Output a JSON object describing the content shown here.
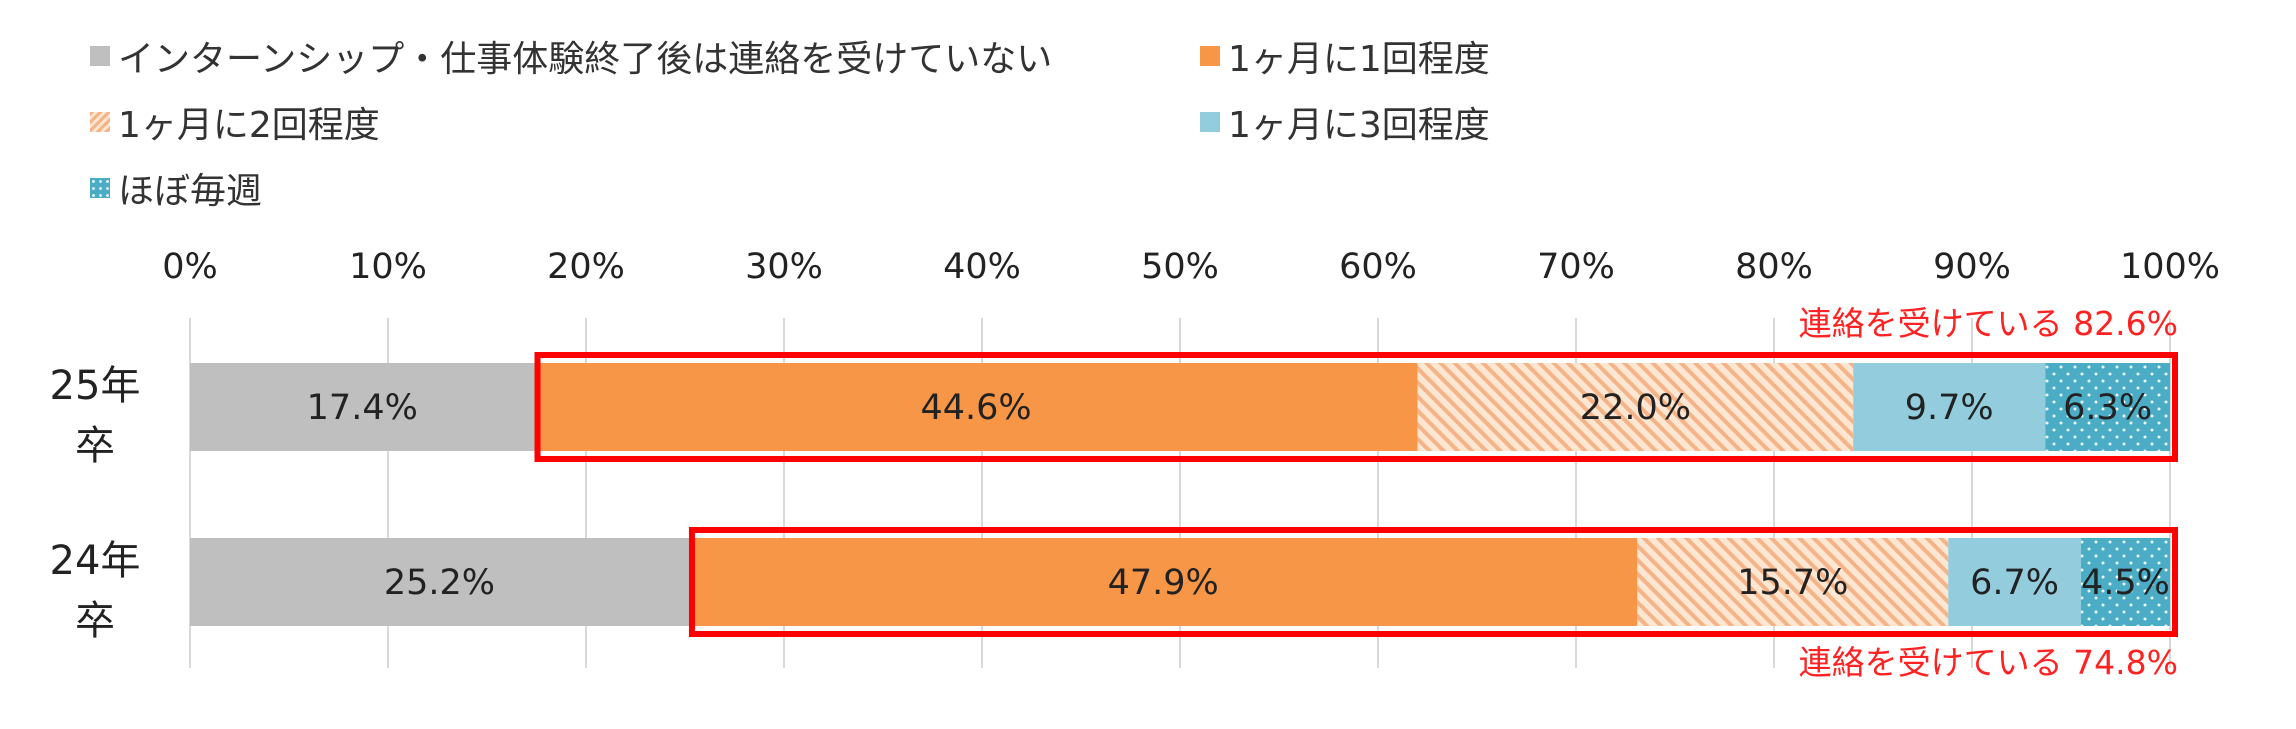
{
  "chart_data": {
    "type": "bar",
    "orientation": "horizontal",
    "stacked": true,
    "percent": true,
    "xlim": [
      0,
      100
    ],
    "x_ticks": [
      "0%",
      "10%",
      "20%",
      "30%",
      "40%",
      "50%",
      "60%",
      "70%",
      "80%",
      "90%",
      "100%"
    ],
    "grid": "vertical",
    "legend_position": "top",
    "categories": [
      {
        "line1": "25年",
        "line2": "卒"
      },
      {
        "line1": "24年",
        "line2": "卒"
      }
    ],
    "series": [
      {
        "name": "インターンシップ・仕事体験終了後は連絡を受けていない",
        "color": "#bfbfbf",
        "pattern": "solid",
        "values": [
          17.4,
          25.2
        ],
        "labels": [
          "17.4%",
          "25.2%"
        ]
      },
      {
        "name": "1ヶ月に1回程度",
        "color": "#f79646",
        "pattern": "solid",
        "values": [
          44.6,
          47.9
        ],
        "labels": [
          "44.6%",
          "47.9%"
        ]
      },
      {
        "name": "1ヶ月に2回程度",
        "color": "#fac090",
        "pattern": "diagonal-stripes",
        "values": [
          22.0,
          15.7
        ],
        "labels": [
          "22.0%",
          "15.7%"
        ]
      },
      {
        "name": "1ヶ月に3回程度",
        "color": "#93cddd",
        "pattern": "solid",
        "values": [
          9.7,
          6.7
        ],
        "labels": [
          "9.7%",
          "6.7%"
        ]
      },
      {
        "name": "ほぼ毎週",
        "color": "#4bacc6",
        "pattern": "dotted",
        "values": [
          6.3,
          4.5
        ],
        "labels": [
          "6.3%",
          "4.5%"
        ]
      }
    ],
    "annotations": [
      {
        "category_index": 0,
        "text": "連絡を受けている 82.6%",
        "placement": "above",
        "highlight_color": "#ff0000"
      },
      {
        "category_index": 1,
        "text": "連絡を受けている 74.8%",
        "placement": "below",
        "highlight_color": "#ff0000"
      }
    ]
  }
}
